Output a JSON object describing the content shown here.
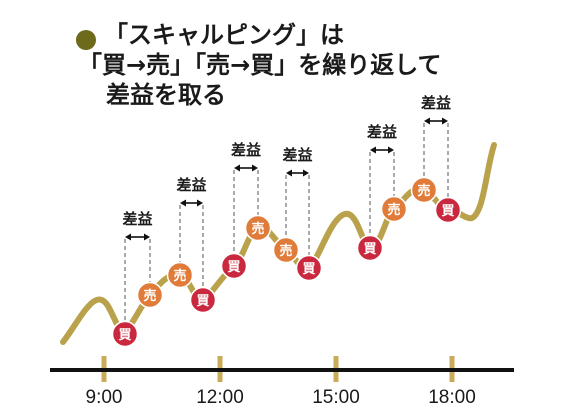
{
  "title": {
    "line1": "「スキャルピング」は",
    "line2": "「買→売」「売→買」を繰り返して",
    "line3": "差益を取る"
  },
  "legend_colors": {
    "buy": "#c9283e",
    "sell": "#e07b39",
    "line": "#b9a24b",
    "bullet": "#6e6a1c"
  },
  "markers": [
    {
      "label": "買",
      "type": "buy"
    },
    {
      "label": "売",
      "type": "sell"
    },
    {
      "label": "売",
      "type": "sell"
    },
    {
      "label": "買",
      "type": "buy"
    },
    {
      "label": "買",
      "type": "buy"
    },
    {
      "label": "売",
      "type": "sell"
    },
    {
      "label": "売",
      "type": "sell"
    },
    {
      "label": "買",
      "type": "buy"
    },
    {
      "label": "買",
      "type": "buy"
    },
    {
      "label": "売",
      "type": "sell"
    },
    {
      "label": "売",
      "type": "sell"
    },
    {
      "label": "買",
      "type": "buy"
    }
  ],
  "profit_label": "差益",
  "profit_count": 6,
  "axis_ticks": [
    "9:00",
    "12:00",
    "15:00",
    "18:00"
  ]
}
